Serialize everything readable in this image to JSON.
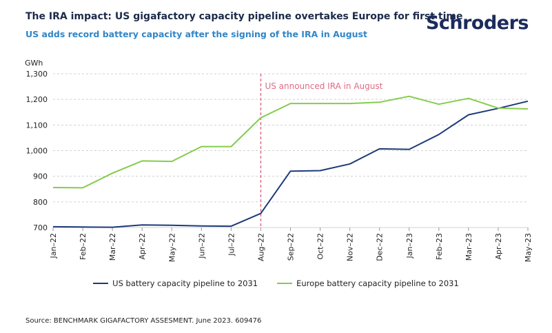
{
  "header": {
    "title": "The IRA impact: US gigafactory capacity pipeline overtakes Europe for first time",
    "subtitle": "US adds record battery capacity after the signing of the IRA in August",
    "logo": "Schroders"
  },
  "source": "Source: BENCHMARK GIGAFACTORY ASSESMENT. June 2023. 609476",
  "colors": {
    "us": "#1c3a78",
    "europe": "#84cc4a",
    "annotation": "#e06b86",
    "grid": "#d0d0d0"
  },
  "chart_data": {
    "type": "line",
    "title": "The IRA impact: US gigafactory capacity pipeline overtakes Europe for first time",
    "ylabel": "GWh",
    "xlabel": "",
    "ylim": [
      700,
      1300
    ],
    "yticks": [
      700,
      800,
      900,
      1000,
      1100,
      1200,
      1300
    ],
    "ytick_labels": [
      "700",
      "800",
      "900",
      "1,000",
      "1,100",
      "1,200",
      "1,300"
    ],
    "categories": [
      "Jan–22",
      "Feb–22",
      "Mar–22",
      "Apr–22",
      "May–22",
      "Jun–22",
      "Jul–22",
      "Aug–22",
      "Sep–22",
      "Oct–22",
      "Nov–22",
      "Dec–22",
      "Jan–23",
      "Feb–23",
      "Mar–23",
      "Apr–23",
      "May–23"
    ],
    "series": [
      {
        "name": "US battery capacity pipeline to 2031",
        "color": "#1c3a78",
        "values": [
          703,
          702,
          701,
          710,
          709,
          706,
          705,
          755,
          920,
          922,
          948,
          1007,
          1005,
          1063,
          1140,
          1165,
          1193
        ]
      },
      {
        "name": "Europe battery capacity pipeline to 2031",
        "color": "#84cc4a",
        "values": [
          856,
          855,
          912,
          960,
          958,
          1016,
          1016,
          1128,
          1184,
          1184,
          1184,
          1189,
          1212,
          1181,
          1204,
          1166,
          1163
        ]
      }
    ],
    "annotation": {
      "text": "US announced IRA in August",
      "x_category": "Aug–22"
    },
    "grid": true,
    "legend": "bottom"
  }
}
